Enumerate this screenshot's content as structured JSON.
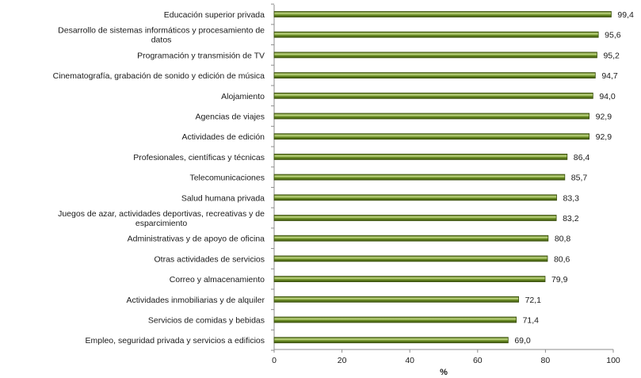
{
  "chart_data": {
    "type": "bar",
    "orientation": "horizontal",
    "title": "",
    "xlabel": "%",
    "ylabel": "",
    "xlim": [
      0,
      100
    ],
    "xticks": [
      0,
      20,
      40,
      60,
      80,
      100
    ],
    "xtick_labels": [
      "0",
      "20",
      "40",
      "60",
      "80",
      "100"
    ],
    "grid": false,
    "legend": "none",
    "bar_color": "#6b8e23",
    "bar_highlight_color": "#c6dd8a",
    "categories": [
      "Educación superior privada",
      "Desarrollo de sistemas informáticos y procesamiento de datos",
      "Programación y transmisión de TV",
      "Cinematografía, grabación de sonido y edición de música",
      "Alojamiento",
      "Agencias de viajes",
      "Actividades de edición",
      "Profesionales, científicas y técnicas",
      "Telecomunicaciones",
      "Salud humana privada",
      "Juegos de azar, actividades deportivas, recreativas y de esparcimiento",
      "Administrativas y de apoyo de oficina",
      "Otras actividades de servicios",
      "Correo y almacenamiento",
      "Actividades inmobiliarias y de alquiler",
      "Servicios de comidas y bebidas",
      "Empleo, seguridad privada y servicios a edificios"
    ],
    "category_lines": [
      [
        "Educación superior privada"
      ],
      [
        "Desarrollo de sistemas informáticos y procesamiento de",
        "datos"
      ],
      [
        "Programación y transmisión de TV"
      ],
      [
        "Cinematografía, grabación de sonido y edición de música"
      ],
      [
        "Alojamiento"
      ],
      [
        "Agencias de viajes"
      ],
      [
        "Actividades de edición"
      ],
      [
        "Profesionales, científicas y técnicas"
      ],
      [
        "Telecomunicaciones"
      ],
      [
        "Salud humana privada"
      ],
      [
        "Juegos de azar, actividades deportivas, recreativas y de",
        "esparcimiento"
      ],
      [
        "Administrativas y de apoyo de oficina"
      ],
      [
        "Otras actividades de servicios"
      ],
      [
        "Correo y almacenamiento"
      ],
      [
        "Actividades inmobiliarias y de alquiler"
      ],
      [
        "Servicios de comidas y bebidas"
      ],
      [
        "Empleo, seguridad privada y servicios a edificios"
      ]
    ],
    "values": [
      99.4,
      95.6,
      95.2,
      94.7,
      94.0,
      92.9,
      92.9,
      86.4,
      85.7,
      83.3,
      83.2,
      80.8,
      80.6,
      79.9,
      72.1,
      71.4,
      69.0
    ],
    "value_labels": [
      "99,4",
      "95,6",
      "95,2",
      "94,7",
      "94,0",
      "92,9",
      "92,9",
      "86,4",
      "85,7",
      "83,3",
      "83,2",
      "80,8",
      "80,6",
      "79,9",
      "72,1",
      "71,4",
      "69,0"
    ]
  }
}
